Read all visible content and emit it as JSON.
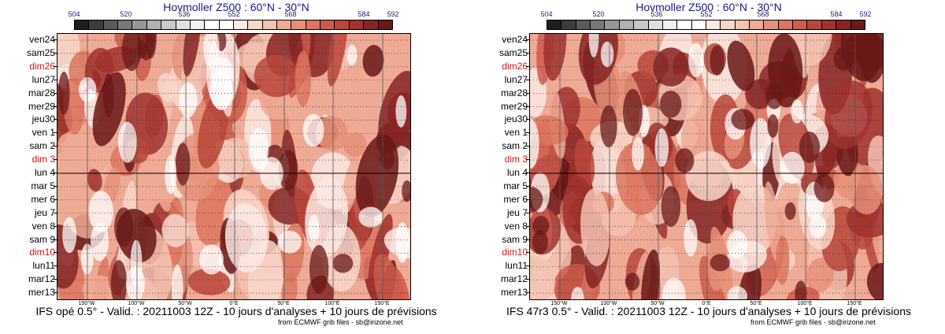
{
  "panels": [
    {
      "title": "Hovmoller Z500 : 60°N - 30°N",
      "caption": "IFS opé 0.5° - Valid. : 20211003 12Z - 10 jours d'analyses + 10 jours de prévisions",
      "credit": "from ECMWF grib files - sb@irizone.net"
    },
    {
      "title": "Hovmoller Z500 : 60°N - 30°N",
      "caption": "IFS 47r3 0.5° - Valid. : 20211003 12Z - 10 jours d'analyses + 10 jours de prévisions",
      "credit": "from ECMWF grib files - sb@irizone.net"
    }
  ],
  "chart_data": [
    {
      "type": "heatmap",
      "title": "Hovmoller Z500 : 60°N - 30°N",
      "colorbar": {
        "tick_labels": [
          "504",
          "520",
          "536",
          "552",
          "568",
          "584",
          "592"
        ],
        "colors": [
          "#1e1e1e",
          "#3c3c3c",
          "#5a5a5a",
          "#787878",
          "#969696",
          "#b0b0b0",
          "#c8c8c8",
          "#e0e0e0",
          "#f0f0f0",
          "#ffffff",
          "#ffffff",
          "#fbe9e4",
          "#f8d7cb",
          "#f4c2b1",
          "#eeaa95",
          "#e69079",
          "#dc7560",
          "#cd5c4b",
          "#b8463b",
          "#a0332e",
          "#862525",
          "#6a1818"
        ]
      },
      "x_tick_labels": [
        "150°W",
        "100°W",
        "50°W",
        "0°E",
        "50°E",
        "100°E",
        "150°E"
      ],
      "y_labels": [
        {
          "text": "ven24",
          "weekend": false
        },
        {
          "text": "sam25",
          "weekend": false
        },
        {
          "text": "dim26",
          "weekend": true
        },
        {
          "text": "lun27",
          "weekend": false
        },
        {
          "text": "mar28",
          "weekend": false
        },
        {
          "text": "mer29",
          "weekend": false
        },
        {
          "text": "jeu30",
          "weekend": false
        },
        {
          "text": "ven 1",
          "weekend": false
        },
        {
          "text": "sam 2",
          "weekend": false
        },
        {
          "text": "dim 3",
          "weekend": true
        },
        {
          "text": "lun 4",
          "weekend": false
        },
        {
          "text": "mar 5",
          "weekend": false
        },
        {
          "text": "mer 6",
          "weekend": false
        },
        {
          "text": "jeu 7",
          "weekend": false
        },
        {
          "text": "ven 8",
          "weekend": false
        },
        {
          "text": "sam 9",
          "weekend": false
        },
        {
          "text": "dim10",
          "weekend": true
        },
        {
          "text": "lun11",
          "weekend": false
        },
        {
          "text": "mar12",
          "weekend": false
        },
        {
          "text": "mer13",
          "weekend": false
        }
      ],
      "analysis_forecast_split": "lun 4"
    },
    {
      "type": "heatmap",
      "title": "Hovmoller Z500 : 60°N - 30°N",
      "colorbar": {
        "tick_labels": [
          "504",
          "520",
          "536",
          "552",
          "568",
          "584",
          "592"
        ],
        "colors": [
          "#1e1e1e",
          "#3c3c3c",
          "#5a5a5a",
          "#787878",
          "#969696",
          "#b0b0b0",
          "#c8c8c8",
          "#e0e0e0",
          "#f0f0f0",
          "#ffffff",
          "#ffffff",
          "#fbe9e4",
          "#f8d7cb",
          "#f4c2b1",
          "#eeaa95",
          "#e69079",
          "#dc7560",
          "#cd5c4b",
          "#b8463b",
          "#a0332e",
          "#862525",
          "#6a1818"
        ]
      },
      "x_tick_labels": [
        "150°W",
        "100°W",
        "50°W",
        "0°E",
        "50°E",
        "100°E",
        "150°E"
      ],
      "y_labels": [
        {
          "text": "ven24",
          "weekend": false
        },
        {
          "text": "sam25",
          "weekend": false
        },
        {
          "text": "dim26",
          "weekend": true
        },
        {
          "text": "lun27",
          "weekend": false
        },
        {
          "text": "mar28",
          "weekend": false
        },
        {
          "text": "mer29",
          "weekend": false
        },
        {
          "text": "jeu30",
          "weekend": false
        },
        {
          "text": "ven 1",
          "weekend": false
        },
        {
          "text": "sam 2",
          "weekend": false
        },
        {
          "text": "dim 3",
          "weekend": true
        },
        {
          "text": "lun 4",
          "weekend": false
        },
        {
          "text": "mar 5",
          "weekend": false
        },
        {
          "text": "mer 6",
          "weekend": false
        },
        {
          "text": "jeu 7",
          "weekend": false
        },
        {
          "text": "ven 8",
          "weekend": false
        },
        {
          "text": "sam 9",
          "weekend": false
        },
        {
          "text": "dim10",
          "weekend": true
        },
        {
          "text": "lun11",
          "weekend": false
        },
        {
          "text": "mar12",
          "weekend": false
        },
        {
          "text": "mer13",
          "weekend": false
        }
      ],
      "analysis_forecast_split": "lun 4"
    }
  ]
}
